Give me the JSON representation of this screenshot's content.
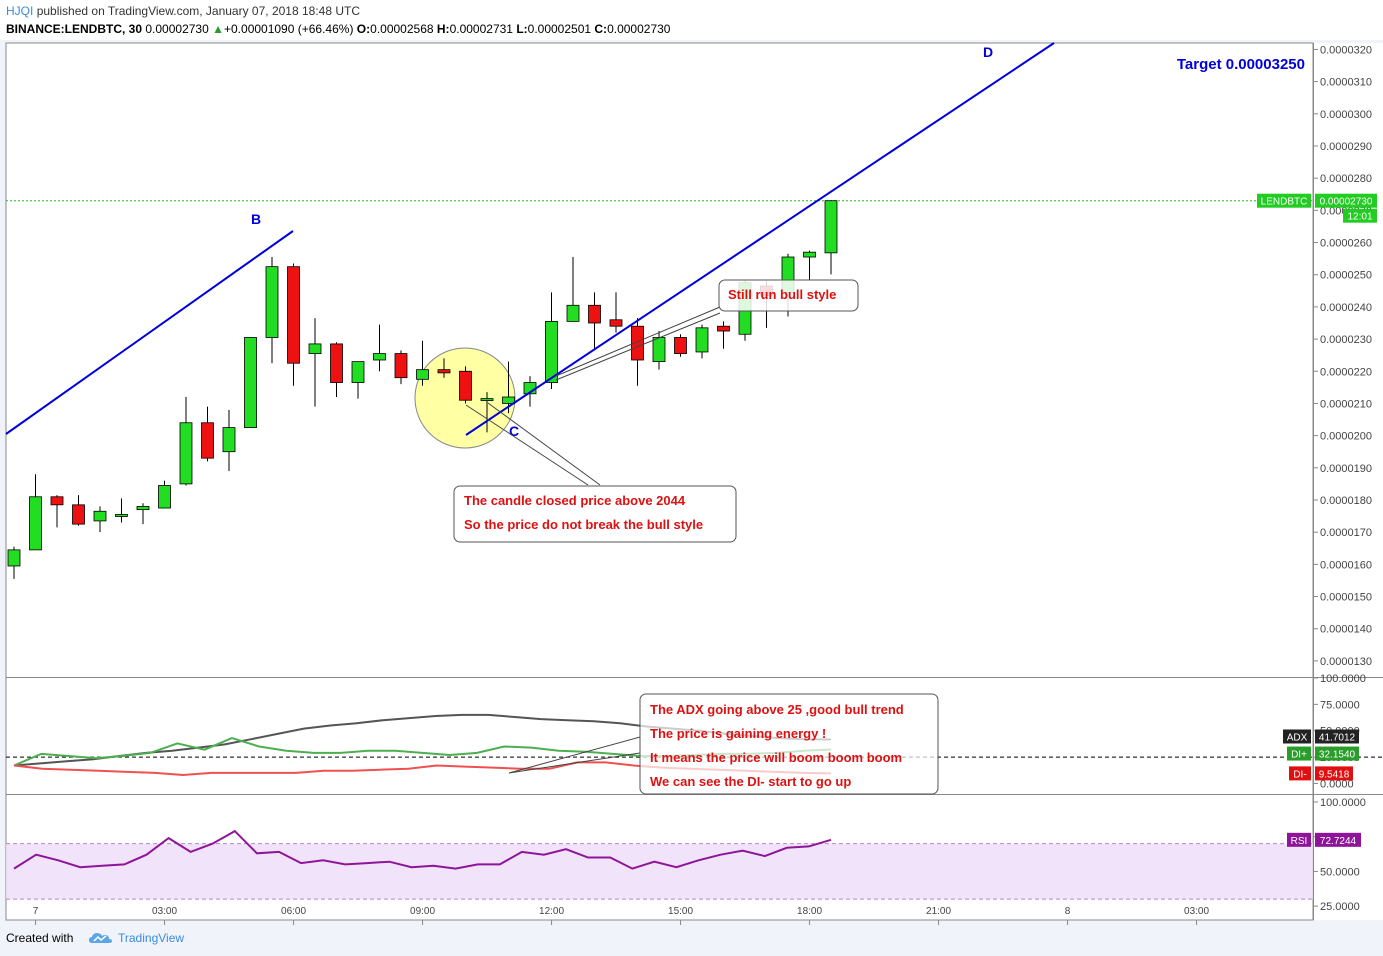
{
  "header": {
    "user": "HJQI",
    "published": "published on TradingView.com, January 07, 2018 18:48 UTC",
    "symbol": "BINANCE:LENDBTC, 30",
    "last": "0.00002730",
    "change_arrow": "▲",
    "change": "+0.00001090 (+66.46%)",
    "o_label": "O:",
    "o": "0.00002568",
    "h_label": "H:",
    "h": "0.00002731",
    "l_label": "L:",
    "l": "0.00002501",
    "c_label": "C:",
    "c": "0.00002730"
  },
  "footer": {
    "created": "Created with",
    "brand": "TradingView"
  },
  "colors": {
    "up": "#22dd22",
    "down": "#ee1111",
    "wave": "#0000dd",
    "adx": "#555555",
    "diplus": "#4caf50",
    "diminus": "#f05050",
    "rsi": "#8e1599",
    "annotation": "#dd1111"
  },
  "chart_data": [
    {
      "type": "candlestick",
      "symbol": "LENDBTC",
      "interval": "30",
      "ylim": [
        1.25e-05,
        3.22e-05
      ],
      "y_ticks": [
        "0.0000320",
        "0.0000310",
        "0.0000300",
        "0.0000290",
        "0.0000280",
        "0.0000270",
        "0.0000260",
        "0.0000250",
        "0.0000240",
        "0.0000230",
        "0.0000220",
        "0.0000210",
        "0.0000200",
        "0.0000190",
        "0.0000180",
        "0.0000170",
        "0.0000160",
        "0.0000150",
        "0.0000140",
        "0.0000130"
      ],
      "x_ticks": [
        {
          "label": "7",
          "x": 0.7
        },
        {
          "label": "03:00",
          "x": 6.7
        },
        {
          "label": "06:00",
          "x": 12.7
        },
        {
          "label": "09:00",
          "x": 18.7
        },
        {
          "label": "12:00",
          "x": 24.7
        },
        {
          "label": "15:00",
          "x": 30.7
        },
        {
          "label": "18:00",
          "x": 36.7
        },
        {
          "label": "21:00",
          "x": 42.7
        },
        {
          "label": "8",
          "x": 48.7
        },
        {
          "label": "03:00",
          "x": 54.7
        }
      ],
      "candles": [
        {
          "o": 1.595e-05,
          "h": 1.655e-05,
          "l": 1.555e-05,
          "c": 1.645e-05
        },
        {
          "o": 1.645e-05,
          "h": 1.88e-05,
          "l": 1.645e-05,
          "c": 1.81e-05
        },
        {
          "o": 1.81e-05,
          "h": 1.815e-05,
          "l": 1.715e-05,
          "c": 1.785e-05
        },
        {
          "o": 1.785e-05,
          "h": 1.815e-05,
          "l": 1.72e-05,
          "c": 1.725e-05
        },
        {
          "o": 1.735e-05,
          "h": 1.78e-05,
          "l": 1.7e-05,
          "c": 1.765e-05
        },
        {
          "o": 1.75e-05,
          "h": 1.805e-05,
          "l": 1.73e-05,
          "c": 1.755e-05
        },
        {
          "o": 1.77e-05,
          "h": 1.79e-05,
          "l": 1.725e-05,
          "c": 1.78e-05
        },
        {
          "o": 1.775e-05,
          "h": 1.86e-05,
          "l": 1.775e-05,
          "c": 1.845e-05
        },
        {
          "o": 1.85e-05,
          "h": 2.12e-05,
          "l": 1.845e-05,
          "c": 2.04e-05
        },
        {
          "o": 2.04e-05,
          "h": 2.09e-05,
          "l": 1.92e-05,
          "c": 1.93e-05
        },
        {
          "o": 1.95e-05,
          "h": 2.08e-05,
          "l": 1.89e-05,
          "c": 2.025e-05
        },
        {
          "o": 2.025e-05,
          "h": 2.305e-05,
          "l": 2.025e-05,
          "c": 2.305e-05
        },
        {
          "o": 2.305e-05,
          "h": 2.555e-05,
          "l": 2.225e-05,
          "c": 2.525e-05
        },
        {
          "o": 2.525e-05,
          "h": 2.535e-05,
          "l": 2.155e-05,
          "c": 2.225e-05
        },
        {
          "o": 2.255e-05,
          "h": 2.365e-05,
          "l": 2.09e-05,
          "c": 2.285e-05
        },
        {
          "o": 2.285e-05,
          "h": 2.29e-05,
          "l": 2.12e-05,
          "c": 2.165e-05
        },
        {
          "o": 2.165e-05,
          "h": 2.23e-05,
          "l": 2.115e-05,
          "c": 2.23e-05
        },
        {
          "o": 2.235e-05,
          "h": 2.345e-05,
          "l": 2.2e-05,
          "c": 2.255e-05
        },
        {
          "o": 2.255e-05,
          "h": 2.265e-05,
          "l": 2.16e-05,
          "c": 2.18e-05
        },
        {
          "o": 2.175e-05,
          "h": 2.295e-05,
          "l": 2.155e-05,
          "c": 2.205e-05
        },
        {
          "o": 2.205e-05,
          "h": 2.24e-05,
          "l": 2.18e-05,
          "c": 2.195e-05
        },
        {
          "o": 2.2e-05,
          "h": 2.215e-05,
          "l": 2.1e-05,
          "c": 2.11e-05
        },
        {
          "o": 2.11e-05,
          "h": 2.135e-05,
          "l": 2.01e-05,
          "c": 2.115e-05
        },
        {
          "o": 2.1e-05,
          "h": 2.23e-05,
          "l": 2.07e-05,
          "c": 2.12e-05
        },
        {
          "o": 2.13e-05,
          "h": 2.185e-05,
          "l": 2.09e-05,
          "c": 2.165e-05
        },
        {
          "o": 2.165e-05,
          "h": 2.445e-05,
          "l": 2.145e-05,
          "c": 2.355e-05
        },
        {
          "o": 2.355e-05,
          "h": 2.555e-05,
          "l": 2.355e-05,
          "c": 2.405e-05
        },
        {
          "o": 2.405e-05,
          "h": 2.445e-05,
          "l": 2.265e-05,
          "c": 2.35e-05
        },
        {
          "o": 2.36e-05,
          "h": 2.445e-05,
          "l": 2.32e-05,
          "c": 2.34e-05
        },
        {
          "o": 2.34e-05,
          "h": 2.365e-05,
          "l": 2.155e-05,
          "c": 2.235e-05
        },
        {
          "o": 2.23e-05,
          "h": 2.325e-05,
          "l": 2.205e-05,
          "c": 2.305e-05
        },
        {
          "o": 2.305e-05,
          "h": 2.315e-05,
          "l": 2.245e-05,
          "c": 2.255e-05
        },
        {
          "o": 2.26e-05,
          "h": 2.345e-05,
          "l": 2.24e-05,
          "c": 2.335e-05
        },
        {
          "o": 2.34e-05,
          "h": 2.355e-05,
          "l": 2.27e-05,
          "c": 2.325e-05
        },
        {
          "o": 2.315e-05,
          "h": 2.485e-05,
          "l": 2.295e-05,
          "c": 2.475e-05
        },
        {
          "o": 2.465e-05,
          "h": 2.48e-05,
          "l": 2.335e-05,
          "c": 2.435e-05
        },
        {
          "o": 2.445e-05,
          "h": 2.565e-05,
          "l": 2.37e-05,
          "c": 2.555e-05
        },
        {
          "o": 2.555e-05,
          "h": 2.575e-05,
          "l": 2.485e-05,
          "c": 2.57e-05
        },
        {
          "o": 2.568e-05,
          "h": 2.731e-05,
          "l": 2.501e-05,
          "c": 2.73e-05
        }
      ],
      "last_price_label": {
        "symbol": "LENDBTC",
        "price": "0.00002730",
        "countdown": "12:01"
      },
      "wave_labels": [
        "B",
        "C",
        "D"
      ],
      "target_text": "Target 0.00003250"
    },
    {
      "type": "line",
      "indicator": "DMI",
      "ylim": [
        -10,
        100
      ],
      "y_ticks": [
        "100.0000",
        "75.0000",
        "50.0000",
        "25.0000",
        "0.0000"
      ],
      "level": 25,
      "series": [
        {
          "name": "ADX",
          "values": [
            17,
            19,
            21,
            23,
            26,
            29,
            31,
            34,
            37,
            42,
            47,
            52,
            55,
            57,
            60,
            62,
            64,
            65,
            65,
            63,
            61,
            60,
            59,
            57,
            54,
            52,
            50,
            47,
            45,
            43,
            42,
            41.7012
          ]
        },
        {
          "name": "DI+",
          "values": [
            17,
            28,
            26,
            24,
            26,
            29,
            38,
            32,
            43,
            35,
            31,
            29,
            29,
            31,
            31,
            29,
            27,
            29,
            35,
            34,
            31,
            30,
            28,
            26,
            26,
            27,
            28,
            28,
            29,
            31,
            32.154
          ]
        },
        {
          "name": "DI-",
          "values": [
            17,
            14,
            13,
            12,
            11,
            10,
            8,
            10,
            10,
            10,
            10,
            12,
            12,
            13,
            14,
            17,
            16,
            15,
            14,
            14,
            20,
            20,
            17,
            15,
            14,
            13,
            12,
            11,
            10,
            9.5418
          ]
        }
      ],
      "legend_values": {
        "ADX": "41.7012",
        "DI+": "32.1540",
        "DI-": "9.5418"
      }
    },
    {
      "type": "line",
      "indicator": "RSI",
      "ylim": [
        15,
        105
      ],
      "y_ticks": [
        "100.0000",
        "75.0000",
        "50.0000",
        "25.0000"
      ],
      "band": [
        30,
        70
      ],
      "series": [
        {
          "name": "RSI",
          "values": [
            52,
            62,
            58,
            53,
            54,
            55,
            62,
            74,
            64,
            70,
            79,
            63,
            64,
            56,
            58,
            55,
            56,
            57,
            53,
            54,
            52,
            55,
            55,
            64,
            62,
            66,
            60,
            60,
            52,
            57,
            53,
            58,
            62,
            65,
            61,
            67,
            68,
            72.7244
          ]
        }
      ],
      "legend_value": "72.7244"
    }
  ],
  "annotations": {
    "candle_note": {
      "line1": "The candle closed price above 2044",
      "line2": "So the price do not break the bull style"
    },
    "bull_note": {
      "text": "Still run bull style"
    },
    "adx_note": {
      "line1": "The ADX going above 25 ,good bull trend",
      "line2": "The price is gaining energy !",
      "line3": "It means the price will boom boom boom",
      "line4": "We can see the DI-  start to go up"
    }
  }
}
